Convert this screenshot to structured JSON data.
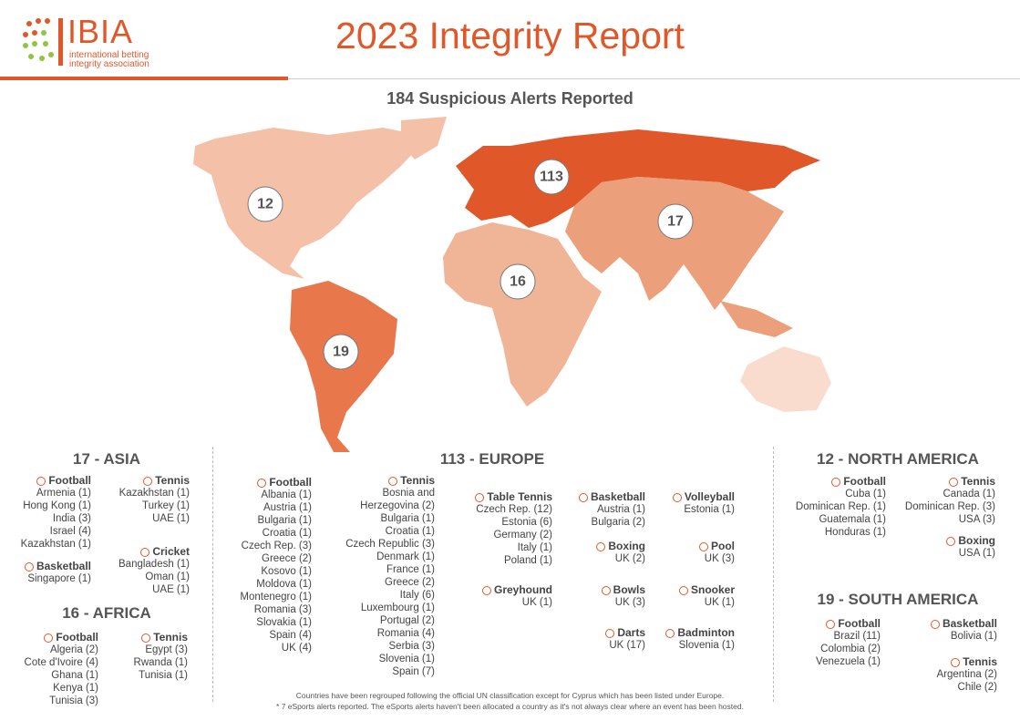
{
  "header": {
    "logo_name": "IBIA",
    "logo_sub": [
      "international betting",
      "integrity association"
    ],
    "title": "2023 Integrity Report"
  },
  "map": {
    "title": "184 Suspicious Alerts Reported",
    "regions": [
      {
        "label": 12
      },
      {
        "label": 113
      },
      {
        "label": 17
      },
      {
        "label": 16
      },
      {
        "label": 19
      }
    ]
  },
  "sections": [
    {
      "heading": "17 - ASIA",
      "sports": [
        {
          "name": "Football",
          "entries": [
            "Armenia (1)",
            "Hong Kong (1)",
            "India (3)",
            "Israel (4)",
            "Kazakhstan (1)"
          ]
        },
        {
          "name": "Tennis",
          "entries": [
            "Kazakhstan (1)",
            "Turkey (1)",
            "UAE (1)"
          ]
        },
        {
          "name": "Cricket",
          "entries": [
            "Bangladesh (1)",
            "Oman (1)",
            "UAE (1)"
          ]
        },
        {
          "name": "Basketball",
          "entries": [
            "Singapore (1)"
          ]
        }
      ]
    },
    {
      "heading": "16 - AFRICA",
      "sports": [
        {
          "name": "Football",
          "entries": [
            "Algeria (2)",
            "Cote d'Ivoire (4)",
            "Ghana (1)",
            "Kenya (1)",
            "Tunisia (3)"
          ]
        },
        {
          "name": "Tennis",
          "entries": [
            "Egypt (3)",
            "Rwanda (1)",
            "Tunisia (1)"
          ]
        }
      ]
    },
    {
      "heading": "113 - EUROPE",
      "sports": [
        {
          "name": "Football",
          "entries": [
            "Albania (1)",
            "Austria (1)",
            "Bulgaria (1)",
            "Croatia (1)",
            "Czech Rep. (3)",
            "Greece (2)",
            "Kosovo (1)",
            "Moldova (1)",
            "Montenegro (1)",
            "Romania (3)",
            "Slovakia (1)",
            "Spain (4)",
            "UK (4)"
          ]
        },
        {
          "name": "Tennis",
          "entries": [
            "Bosnia and Herzegovina (2)",
            "Bulgaria (1)",
            "Croatia (1)",
            "Czech Republic (3)",
            "Denmark (1)",
            "France (1)",
            "Greece (2)",
            "Italy (6)",
            "Luxembourg (1)",
            "Portugal (2)",
            "Romania (4)",
            "Serbia (3)",
            "Slovenia (1)",
            "Spain (7)"
          ]
        },
        {
          "name": "Table Tennis",
          "entries": [
            "Czech Rep. (12)",
            "Estonia (6)",
            "Germany (2)",
            "Italy (1)",
            "Poland (1)"
          ]
        },
        {
          "name": "Basketball",
          "entries": [
            "Austria (1)",
            "Bulgaria (2)"
          ]
        },
        {
          "name": "Volleyball",
          "entries": [
            "Estonia (1)"
          ]
        },
        {
          "name": "Boxing",
          "entries": [
            "UK (2)"
          ]
        },
        {
          "name": "Pool",
          "entries": [
            "UK (3)"
          ]
        },
        {
          "name": "Greyhound",
          "entries": [
            "UK (1)"
          ]
        },
        {
          "name": "Bowls",
          "entries": [
            "UK (3)"
          ]
        },
        {
          "name": "Snooker",
          "entries": [
            "UK (1)"
          ]
        },
        {
          "name": "Darts",
          "entries": [
            "UK (17)"
          ]
        },
        {
          "name": "Badminton",
          "entries": [
            "Slovenia (1)"
          ]
        }
      ]
    },
    {
      "heading": "12 - NORTH AMERICA",
      "sports": [
        {
          "name": "Football",
          "entries": [
            "Cuba (1)",
            "Dominican Rep. (1)",
            "Guatemala (1)",
            "Honduras (1)"
          ]
        },
        {
          "name": "Tennis",
          "entries": [
            "Canada (1)",
            "Dominican Rep. (3)",
            "USA (3)"
          ]
        },
        {
          "name": "Boxing",
          "entries": [
            "USA (1)"
          ]
        }
      ]
    },
    {
      "heading": "19 - SOUTH AMERICA",
      "sports": [
        {
          "name": "Football",
          "entries": [
            "Brazil (11)",
            "Colombia (2)",
            "Venezuela (1)"
          ]
        },
        {
          "name": "Basketball",
          "entries": [
            "Bolivia (1)"
          ]
        },
        {
          "name": "Tennis",
          "entries": [
            "Argentina (2)",
            "Chile (2)"
          ]
        }
      ]
    }
  ],
  "notes": [
    "Countries have been regrouped following the official UN classification except for Cyprus which has been listed under Europe.",
    "* 7 eSports alerts reported. The eSports alerts haven't been allocated a country as it's not always clear where an event has been hosted."
  ]
}
